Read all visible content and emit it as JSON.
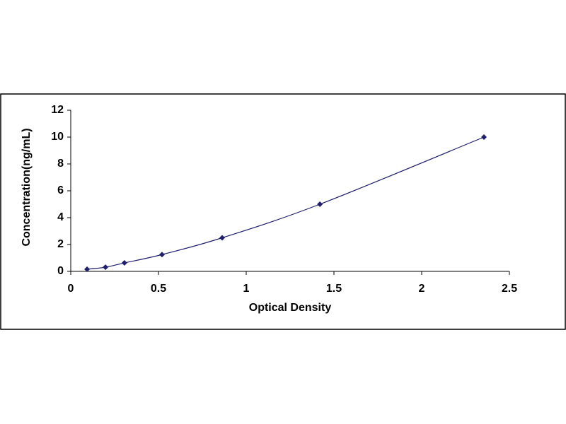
{
  "chart_data": {
    "type": "scatter",
    "x_label": "Optical Density",
    "y_label": "Concentration(ng/mL)",
    "series": [
      {
        "color": "#1f1f6e",
        "x": [
          0.093,
          0.198,
          0.306,
          0.52,
          0.863,
          1.42,
          2.355
        ],
        "values": [
          0.16,
          0.31,
          0.63,
          1.25,
          2.5,
          5,
          10
        ]
      }
    ],
    "xlim": [
      0,
      2.5
    ],
    "xticks": [
      0,
      0.5,
      1,
      1.5,
      2,
      2.5
    ],
    "ylim": [
      0,
      12
    ],
    "yticks": [
      0,
      2,
      4,
      6,
      8,
      10,
      12
    ],
    "trendline": true
  }
}
